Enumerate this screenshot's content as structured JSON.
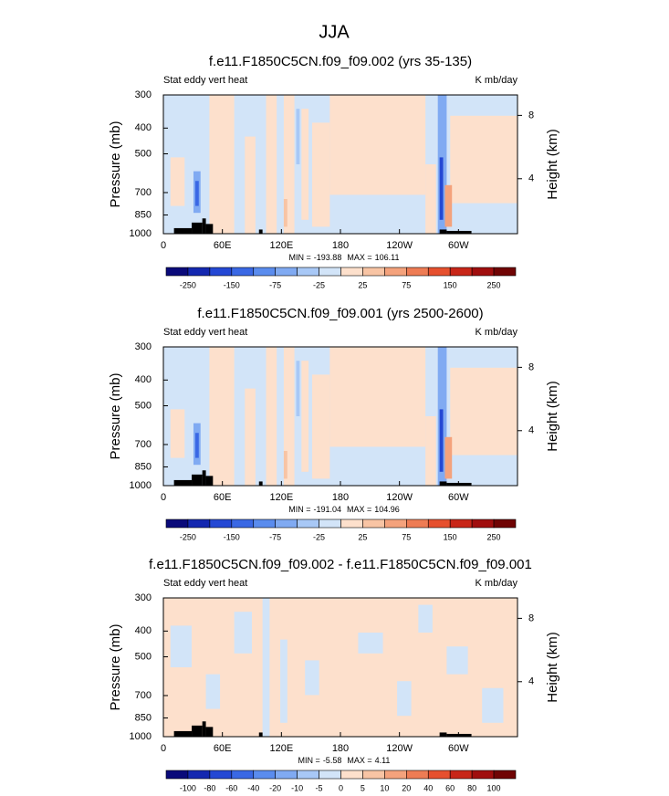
{
  "title": "JJA",
  "chart_data": [
    {
      "type": "contour",
      "title": "f.e11.F1850C5CN.f09_f09.002 (yrs 35-135)",
      "left_label": "Stat eddy vert heat",
      "right_label": "K mb/day",
      "ylabel": "Pressure (mb)",
      "y2label": "Height (km)",
      "xlim": [
        0,
        360
      ],
      "xticks": [
        0,
        {
          "value": 60,
          "label": "60E"
        },
        {
          "value": 120,
          "label": "120E"
        },
        180,
        {
          "value": 240,
          "label": "120W"
        },
        {
          "value": 300,
          "label": "60W"
        }
      ],
      "ylim": [
        1000,
        300
      ],
      "ylog": true,
      "yticks": [
        300,
        400,
        500,
        700,
        850,
        1000
      ],
      "y2lim": [
        0.53,
        9.29
      ],
      "y2ticks": [
        4,
        8
      ],
      "stats": [
        {
          "label": "MIN =",
          "value": -193.88
        },
        {
          "label": "MAX =",
          "value": 106.11
        }
      ],
      "colorbar": {
        "colors": [
          "#0a0a7a",
          "#1428b0",
          "#2448d4",
          "#3a68e4",
          "#5a8cee",
          "#80aaf2",
          "#a8c8f6",
          "#d2e4f8",
          "#fde0cc",
          "#f8c4a4",
          "#f4a27c",
          "#ee7c54",
          "#e6502e",
          "#c82618",
          "#a00e0e",
          "#700404"
        ],
        "levels": [
          -250,
          -150,
          -75,
          -25,
          25,
          75,
          150,
          250
        ]
      }
    },
    {
      "type": "contour",
      "title": "f.e11.F1850C5CN.f09_f09.001 (yrs 2500-2600)",
      "left_label": "Stat eddy vert heat",
      "right_label": "K mb/day",
      "ylabel": "Pressure (mb)",
      "y2label": "Height (km)",
      "xlim": [
        0,
        360
      ],
      "xticks": [
        0,
        {
          "value": 60,
          "label": "60E"
        },
        {
          "value": 120,
          "label": "120E"
        },
        180,
        {
          "value": 240,
          "label": "120W"
        },
        {
          "value": 300,
          "label": "60W"
        }
      ],
      "ylim": [
        1000,
        300
      ],
      "ylog": true,
      "yticks": [
        300,
        400,
        500,
        700,
        850,
        1000
      ],
      "y2lim": [
        0.53,
        9.29
      ],
      "y2ticks": [
        4,
        8
      ],
      "stats": [
        {
          "label": "MIN =",
          "value": -191.04
        },
        {
          "label": "MAX =",
          "value": 104.96
        }
      ],
      "colorbar": {
        "colors": [
          "#0a0a7a",
          "#1428b0",
          "#2448d4",
          "#3a68e4",
          "#5a8cee",
          "#80aaf2",
          "#a8c8f6",
          "#d2e4f8",
          "#fde0cc",
          "#f8c4a4",
          "#f4a27c",
          "#ee7c54",
          "#e6502e",
          "#c82618",
          "#a00e0e",
          "#700404"
        ],
        "levels": [
          -250,
          -150,
          -75,
          -25,
          25,
          75,
          150,
          250
        ]
      }
    },
    {
      "type": "contour",
      "title": "f.e11.F1850C5CN.f09_f09.002 - f.e11.F1850C5CN.f09_f09.001",
      "left_label": "Stat eddy vert heat",
      "right_label": "K mb/day",
      "ylabel": "Pressure (mb)",
      "y2label": "Height (km)",
      "xlim": [
        0,
        360
      ],
      "xticks": [
        0,
        {
          "value": 60,
          "label": "60E"
        },
        {
          "value": 120,
          "label": "120E"
        },
        180,
        {
          "value": 240,
          "label": "120W"
        },
        {
          "value": 300,
          "label": "60W"
        }
      ],
      "ylim": [
        1000,
        300
      ],
      "ylog": true,
      "yticks": [
        300,
        400,
        500,
        700,
        850,
        1000
      ],
      "y2lim": [
        0.53,
        9.29
      ],
      "y2ticks": [
        4,
        8
      ],
      "stats": [
        {
          "label": "MIN =",
          "value": -5.58
        },
        {
          "label": "MAX =",
          "value": 4.11
        }
      ],
      "colorbar": {
        "colors": [
          "#0a0a7a",
          "#1428b0",
          "#2448d4",
          "#3a68e4",
          "#5a8cee",
          "#80aaf2",
          "#a8c8f6",
          "#d2e4f8",
          "#fde0cc",
          "#f8c4a4",
          "#f4a27c",
          "#ee7c54",
          "#e6502e",
          "#c82618",
          "#a00e0e",
          "#700404"
        ],
        "levels": [
          -100,
          -80,
          -60,
          -40,
          -20,
          -10,
          -5,
          0,
          5,
          10,
          20,
          40,
          60,
          80,
          100
        ]
      }
    }
  ]
}
